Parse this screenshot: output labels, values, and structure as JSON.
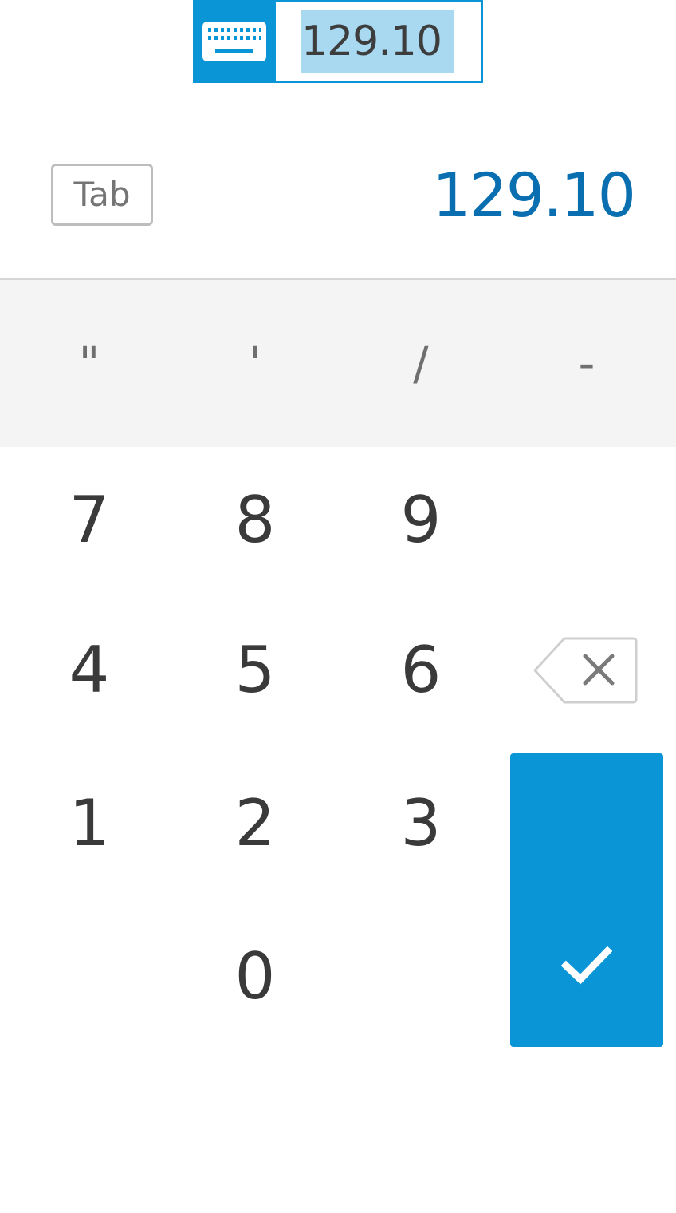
{
  "input": {
    "value": "129.10",
    "keyboard_icon": "keyboard-icon"
  },
  "keypad": {
    "tab_label": "Tab",
    "display_value": "129.10",
    "symbols": [
      "\"",
      "'",
      "/",
      "-"
    ],
    "digits": [
      "7",
      "8",
      "9",
      "4",
      "5",
      "6",
      "1",
      "2",
      "3",
      "0"
    ],
    "backspace_icon": "backspace-icon",
    "enter_icon": "checkmark-icon"
  },
  "colors": {
    "accent": "#0a95d7",
    "display_text": "#0a6fb0",
    "selection": "#a8d9f1"
  }
}
